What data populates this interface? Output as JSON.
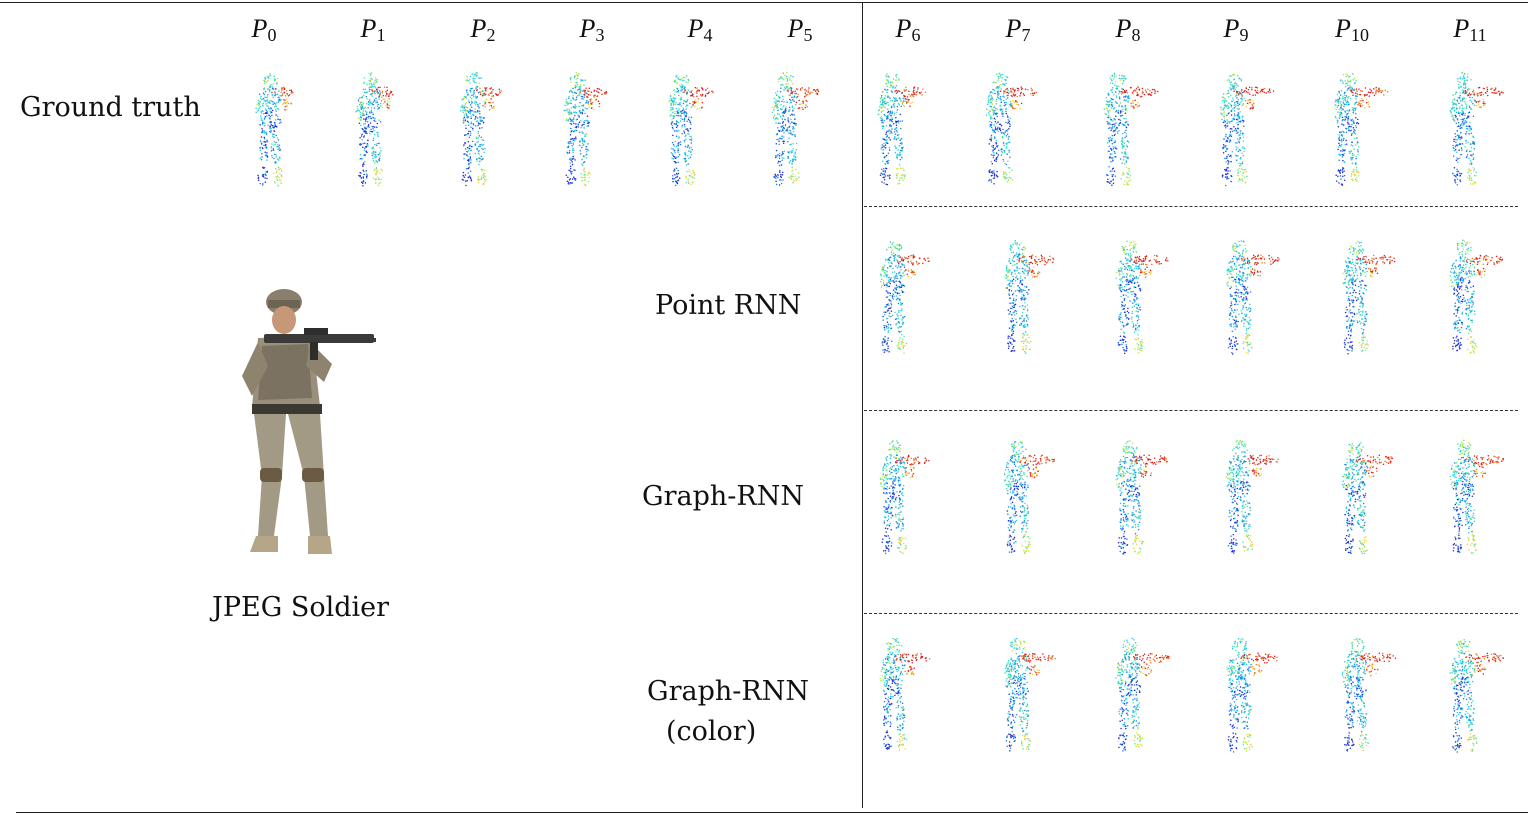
{
  "frames": [
    {
      "base": "P",
      "sub": "0"
    },
    {
      "base": "P",
      "sub": "1"
    },
    {
      "base": "P",
      "sub": "2"
    },
    {
      "base": "P",
      "sub": "3"
    },
    {
      "base": "P",
      "sub": "4"
    },
    {
      "base": "P",
      "sub": "5"
    },
    {
      "base": "P",
      "sub": "6"
    },
    {
      "base": "P",
      "sub": "7"
    },
    {
      "base": "P",
      "sub": "8"
    },
    {
      "base": "P",
      "sub": "9"
    },
    {
      "base": "P",
      "sub": "10"
    },
    {
      "base": "P",
      "sub": "11"
    }
  ],
  "rows": {
    "ground_truth": "Ground truth",
    "point_rnn": "Point RNN",
    "graph_rnn": "Graph-RNN",
    "graph_rnn_color_line1": "Graph-RNN",
    "graph_rnn_color_line2": "(color)"
  },
  "sample_caption": "JPEG Soldier",
  "colors": {
    "colormap": [
      "#1f2bd6",
      "#1f7fe8",
      "#22c9e8",
      "#4fe0b0",
      "#b8e84a",
      "#f2d23a",
      "#f07a22",
      "#d92020"
    ]
  }
}
